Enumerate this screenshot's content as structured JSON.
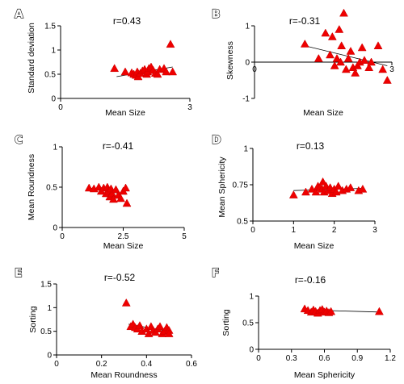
{
  "chart_data": [
    {
      "panel": "A",
      "type": "scatter",
      "annotation": "r=0.43",
      "xlabel": "Mean Size",
      "ylabel": "Standard deviation",
      "xlim": [
        0,
        3
      ],
      "ylim": [
        0,
        1.5
      ],
      "xticks": [
        "0",
        "3"
      ],
      "yticks": [
        "0",
        "0.5",
        "1",
        "1.5"
      ],
      "trend": [
        [
          1.3,
          0.45
        ],
        [
          2.6,
          0.65
        ]
      ],
      "points": [
        [
          1.25,
          0.62
        ],
        [
          1.5,
          0.55
        ],
        [
          1.65,
          0.53
        ],
        [
          1.7,
          0.5
        ],
        [
          1.75,
          0.48
        ],
        [
          1.78,
          0.55
        ],
        [
          1.8,
          0.45
        ],
        [
          1.85,
          0.52
        ],
        [
          1.9,
          0.57
        ],
        [
          1.95,
          0.6
        ],
        [
          2.0,
          0.5
        ],
        [
          2.02,
          0.55
        ],
        [
          2.05,
          0.62
        ],
        [
          2.1,
          0.65
        ],
        [
          2.15,
          0.58
        ],
        [
          2.2,
          0.52
        ],
        [
          2.25,
          0.5
        ],
        [
          2.3,
          0.6
        ],
        [
          2.4,
          0.62
        ],
        [
          2.45,
          0.55
        ],
        [
          2.55,
          1.12
        ],
        [
          2.6,
          0.55
        ]
      ]
    },
    {
      "panel": "B",
      "type": "scatter",
      "annotation": "r=-0.31",
      "xlabel": "Mean Size",
      "ylabel": "Skewness",
      "xlim": [
        0,
        3
      ],
      "ylim": [
        -1,
        1
      ],
      "xticks": [
        "0",
        "3"
      ],
      "yticks": [
        "-1",
        "0",
        "1"
      ],
      "trend": [
        [
          1.1,
          0.45
        ],
        [
          2.9,
          -0.1
        ]
      ],
      "points": [
        [
          1.1,
          0.5
        ],
        [
          1.4,
          0.1
        ],
        [
          1.55,
          0.8
        ],
        [
          1.65,
          0.2
        ],
        [
          1.7,
          0.7
        ],
        [
          1.75,
          -0.1
        ],
        [
          1.8,
          0.1
        ],
        [
          1.85,
          0.9
        ],
        [
          1.88,
          0.0
        ],
        [
          1.9,
          0.45
        ],
        [
          1.95,
          1.35
        ],
        [
          2.0,
          -0.2
        ],
        [
          2.05,
          0.1
        ],
        [
          2.1,
          0.3
        ],
        [
          2.15,
          -0.15
        ],
        [
          2.2,
          -0.3
        ],
        [
          2.25,
          -0.1
        ],
        [
          2.3,
          0.0
        ],
        [
          2.35,
          0.4
        ],
        [
          2.4,
          0.05
        ],
        [
          2.5,
          -0.15
        ],
        [
          2.55,
          0.0
        ],
        [
          2.7,
          0.45
        ],
        [
          2.8,
          -0.2
        ],
        [
          2.9,
          -0.5
        ]
      ]
    },
    {
      "panel": "C",
      "type": "scatter",
      "annotation": "r=-0.41",
      "xlabel": "Mean Size",
      "ylabel": "Mean Roundness",
      "xlim": [
        0,
        5
      ],
      "ylim": [
        0,
        1
      ],
      "xticks": [
        "0",
        "2.5",
        "5"
      ],
      "yticks": [
        "0",
        "0.5",
        "1"
      ],
      "trend": [
        [
          1.1,
          0.49
        ],
        [
          2.6,
          0.41
        ]
      ],
      "points": [
        [
          1.1,
          0.49
        ],
        [
          1.3,
          0.48
        ],
        [
          1.5,
          0.5
        ],
        [
          1.6,
          0.45
        ],
        [
          1.7,
          0.49
        ],
        [
          1.8,
          0.42
        ],
        [
          1.85,
          0.5
        ],
        [
          1.9,
          0.45
        ],
        [
          1.95,
          0.38
        ],
        [
          2.0,
          0.48
        ],
        [
          2.05,
          0.42
        ],
        [
          2.1,
          0.35
        ],
        [
          2.2,
          0.47
        ],
        [
          2.3,
          0.4
        ],
        [
          2.4,
          0.36
        ],
        [
          2.5,
          0.45
        ],
        [
          2.6,
          0.49
        ],
        [
          2.65,
          0.3
        ]
      ]
    },
    {
      "panel": "D",
      "type": "scatter",
      "annotation": "r=0.13",
      "xlabel": "Mean Size",
      "ylabel": "Mean Sphericity",
      "xlim": [
        0,
        3
      ],
      "ylim": [
        0.5,
        1
      ],
      "xticks": [
        "0",
        "1",
        "2",
        "3"
      ],
      "yticks": [
        "0.5",
        "0.75",
        "1"
      ],
      "trend": [
        [
          1.0,
          0.71
        ],
        [
          2.7,
          0.725
        ]
      ],
      "points": [
        [
          1.0,
          0.68
        ],
        [
          1.3,
          0.7
        ],
        [
          1.45,
          0.72
        ],
        [
          1.55,
          0.7
        ],
        [
          1.6,
          0.74
        ],
        [
          1.65,
          0.73
        ],
        [
          1.7,
          0.72
        ],
        [
          1.72,
          0.77
        ],
        [
          1.75,
          0.7
        ],
        [
          1.8,
          0.74
        ],
        [
          1.85,
          0.71
        ],
        [
          1.9,
          0.73
        ],
        [
          1.95,
          0.69
        ],
        [
          2.0,
          0.72
        ],
        [
          2.05,
          0.7
        ],
        [
          2.1,
          0.74
        ],
        [
          2.2,
          0.71
        ],
        [
          2.3,
          0.72
        ],
        [
          2.4,
          0.73
        ],
        [
          2.6,
          0.71
        ],
        [
          2.7,
          0.72
        ]
      ]
    },
    {
      "panel": "E",
      "type": "scatter",
      "annotation": "r=-0.52",
      "xlabel": "Mean Roundness",
      "ylabel": "Sorting",
      "xlim": [
        0,
        0.6
      ],
      "ylim": [
        0,
        1.5
      ],
      "xticks": [
        "0",
        "0.2",
        "0.4",
        "0.6"
      ],
      "yticks": [
        "0",
        "0.5",
        "1",
        "1.5"
      ],
      "trend": [
        [
          0.32,
          0.65
        ],
        [
          0.5,
          0.5
        ]
      ],
      "points": [
        [
          0.31,
          1.1
        ],
        [
          0.33,
          0.6
        ],
        [
          0.34,
          0.65
        ],
        [
          0.35,
          0.58
        ],
        [
          0.36,
          0.55
        ],
        [
          0.37,
          0.62
        ],
        [
          0.38,
          0.5
        ],
        [
          0.4,
          0.55
        ],
        [
          0.41,
          0.45
        ],
        [
          0.42,
          0.6
        ],
        [
          0.43,
          0.52
        ],
        [
          0.44,
          0.48
        ],
        [
          0.45,
          0.55
        ],
        [
          0.46,
          0.6
        ],
        [
          0.47,
          0.45
        ],
        [
          0.48,
          0.5
        ],
        [
          0.49,
          0.58
        ],
        [
          0.5,
          0.52
        ],
        [
          0.5,
          0.45
        ]
      ]
    },
    {
      "panel": "F",
      "type": "scatter",
      "annotation": "r=-0.16",
      "xlabel": "Mean Sphericity",
      "ylabel": "Sorting",
      "xlim": [
        0,
        1.2
      ],
      "ylim": [
        0,
        1
      ],
      "xticks": [
        "0",
        "0.3",
        "0.6",
        "0.9",
        "1.2"
      ],
      "yticks": [
        "0",
        "0.5",
        "1"
      ],
      "trend": [
        [
          0.42,
          0.74
        ],
        [
          1.1,
          0.7
        ]
      ],
      "points": [
        [
          0.42,
          0.76
        ],
        [
          0.45,
          0.73
        ],
        [
          0.48,
          0.7
        ],
        [
          0.5,
          0.74
        ],
        [
          0.52,
          0.71
        ],
        [
          0.54,
          0.68
        ],
        [
          0.56,
          0.73
        ],
        [
          0.58,
          0.75
        ],
        [
          0.6,
          0.7
        ],
        [
          0.62,
          0.72
        ],
        [
          0.64,
          0.69
        ],
        [
          0.66,
          0.71
        ],
        [
          1.1,
          0.71
        ]
      ]
    }
  ]
}
